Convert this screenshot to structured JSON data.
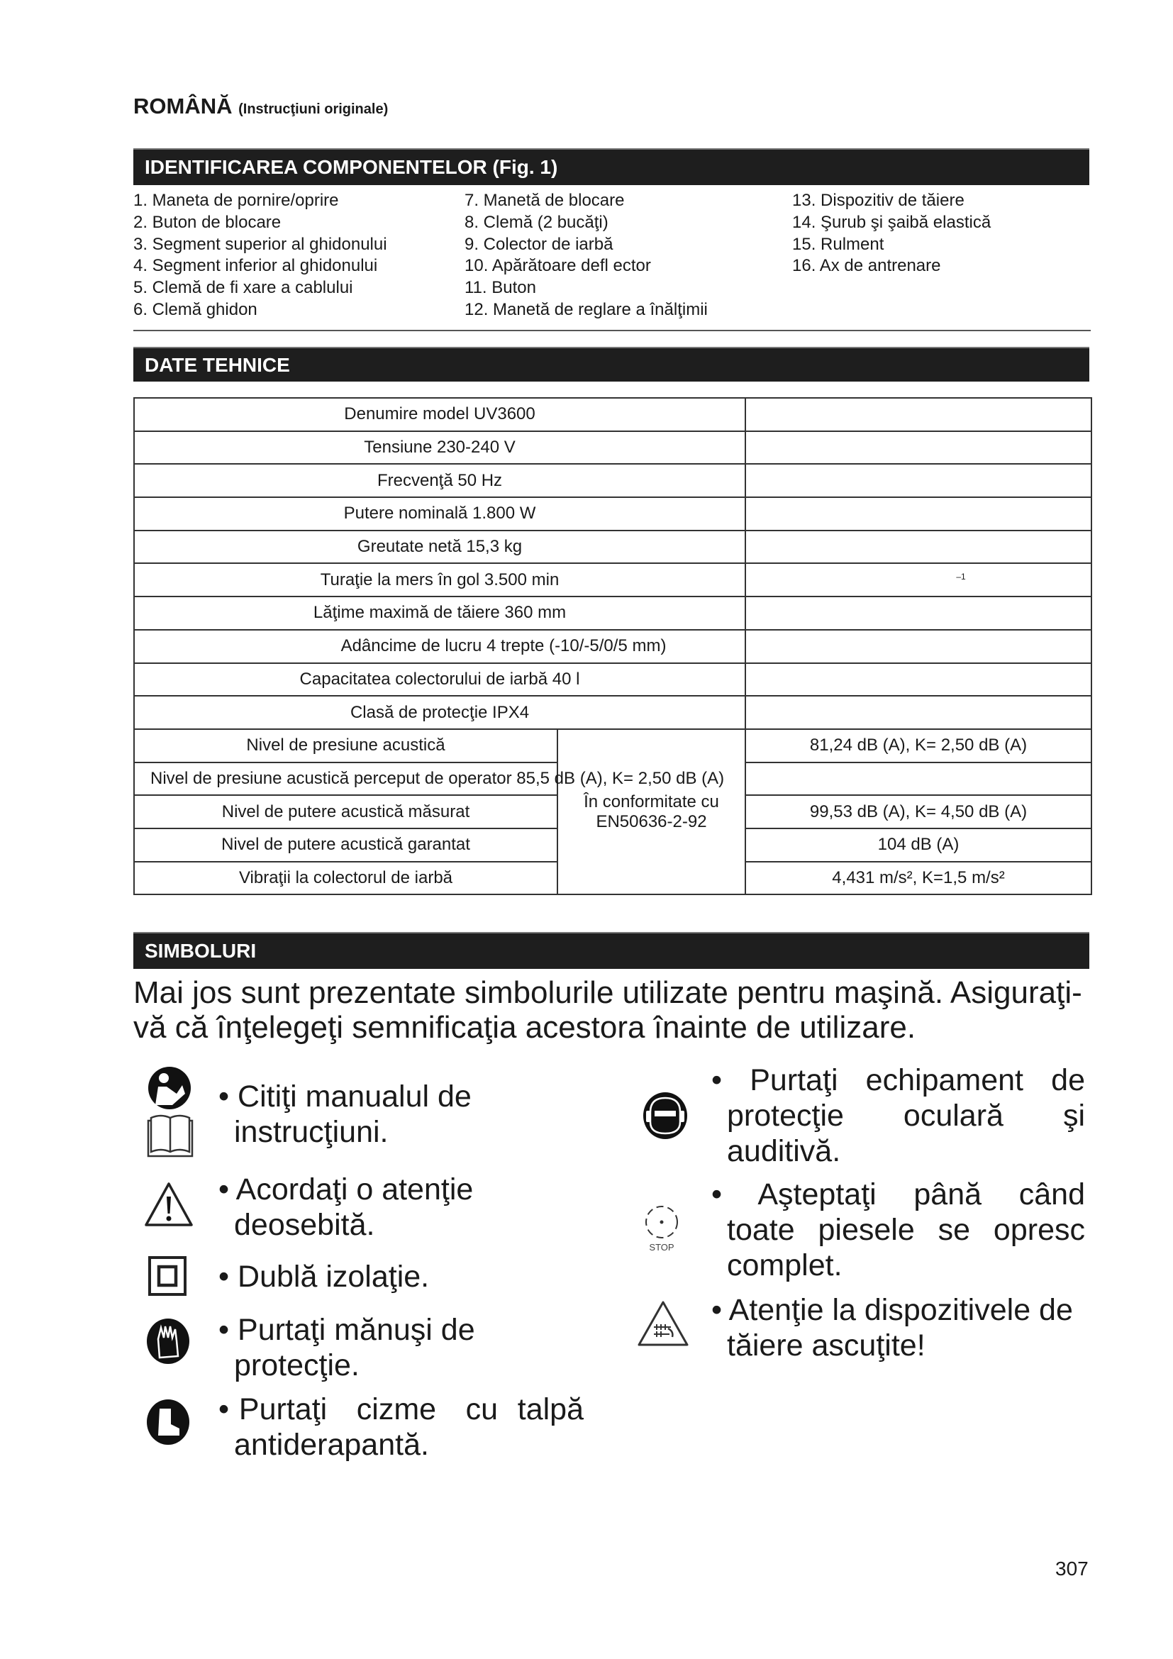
{
  "header": {
    "language": "ROMÂNĂ",
    "subtitle": "(Instrucţiuni originale)"
  },
  "components": {
    "title": "IDENTIFICAREA COMPONENTELOR (Fig. 1)",
    "col1": [
      "1.  Maneta de pornire/oprire",
      "2.  Buton de blocare",
      "3.  Segment superior al ghidonului",
      "4.  Segment inferior al ghidonului",
      "5.  Clemă de fi xare a cablului",
      "6.  Clemă ghidon"
    ],
    "col2": [
      "7.  Manetă de blocare",
      "8.  Clemă (2 bucăţi)",
      "9.  Colector de iarbă",
      "10.  Apărătoare defl ector",
      "11.  Buton",
      "12.  Manetă de reglare a înălţimii"
    ],
    "col3": [
      "13.  Dispozitiv de tăiere",
      "14.  Şurub şi şaibă elastică",
      "15.  Rulment",
      "16.  Ax de antrenare"
    ]
  },
  "specs": {
    "title": "DATE TEHNICE",
    "rows": [
      "Denumire model UV3600",
      "Tensiune 230-240 V",
      "Frecvenţă  50 Hz",
      "Putere nominală  1.800 W",
      "Greutate netă 15,3 kg",
      "Turaţie la mers în gol 3.500 min",
      "Lăţime maximă de tăiere 360 mm",
      "Adâncime de lucru  4 trepte (-10/-5/0/5 mm)",
      "Capacitatea colectorului de iarbă 40 l",
      "Clasă de protecţie IPX4"
    ],
    "rpm_exponent": "–1",
    "acoustic": [
      {
        "label": "Nivel de presiune acustică",
        "value": "81,24 dB (A), K= 2,50 dB (A)"
      },
      {
        "label": "Nivel de presiune acustică perceput de operator 85,5 dB (A), K= 2,50 dB (A)",
        "value": ""
      },
      {
        "label": "Nivel de putere acustică măsurat",
        "value": "99,53 dB (A), K= 4,50 dB (A)"
      },
      {
        "label": "Nivel de putere acustică garantat",
        "value": "104 dB (A)"
      },
      {
        "label": "Vibraţii la colectorul de iarbă",
        "value": "4,431 m/s², K=1,5 m/s²"
      }
    ],
    "conformity_line1": "În conformitate cu",
    "conformity_line2": "EN50636-2-92"
  },
  "symbols": {
    "title": "SIMBOLURI",
    "intro_line1": "Mai jos sunt prezentate simbolurile utilizate pentru maşină. Asiguraţi-",
    "intro_line2": "vă că înţelegeţi semnificaţia acestora înainte de utilizare.",
    "left": [
      {
        "icon": "read-manual-icon",
        "lines": [
          "Citiţi manualul de",
          "instrucţiuni."
        ]
      },
      {
        "icon": "warning-icon",
        "lines": [
          "Acordaţi o atenţie",
          "deosebită."
        ]
      },
      {
        "icon": "double-insulation-icon",
        "lines": [
          "Dublă izolaţie."
        ]
      },
      {
        "icon": "gloves-icon",
        "lines": [
          "Purtaţi mănuşi de",
          "protecţie."
        ]
      },
      {
        "icon": "boots-icon",
        "lines": [
          "Purtaţi   cizme   cu  talpă",
          "antiderapantă."
        ]
      }
    ],
    "right": [
      {
        "icon": "eye-ear-protection-icon",
        "lines": [
          "Purtaţi echipament de",
          "protecţie oculară şi",
          "auditivă."
        ]
      },
      {
        "icon": "stop-rotation-icon",
        "stop_label": "STOP",
        "lines": [
          "Aşteptaţi până când",
          "toate piesele se opresc",
          "complet."
        ]
      },
      {
        "icon": "sharp-blades-icon",
        "lines": [
          "Atenţie la dispozitivele de",
          "tăiere ascuţite!"
        ]
      }
    ]
  },
  "page_number": "307"
}
